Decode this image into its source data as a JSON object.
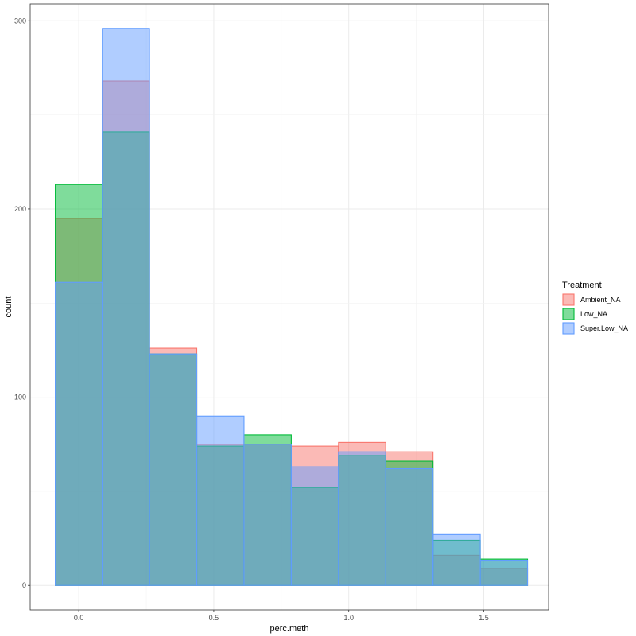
{
  "chart_data": {
    "type": "histogram",
    "xlabel": "perc.meth",
    "ylabel": "count",
    "xlim": [
      -0.18,
      1.74
    ],
    "ylim": [
      -13,
      309
    ],
    "x_ticks": [
      0.0,
      0.5,
      1.0,
      1.5
    ],
    "x_tick_labels": [
      "0.0",
      "0.5",
      "1.0",
      "1.5"
    ],
    "y_ticks": [
      0,
      100,
      200,
      300
    ],
    "y_tick_labels": [
      "0",
      "100",
      "200",
      "300"
    ],
    "bin_edges": [
      -0.087,
      0.087,
      0.262,
      0.437,
      0.612,
      0.787,
      0.962,
      1.137,
      1.312,
      1.487,
      1.662
    ],
    "series": [
      {
        "name": "Ambient_NA",
        "fill": "#F8766D",
        "stroke": "#F8766D",
        "values": [
          195,
          268,
          126,
          75,
          75,
          74,
          76,
          71,
          16,
          9
        ]
      },
      {
        "name": "Low_NA",
        "fill": "#00BA38",
        "stroke": "#00BA38",
        "values": [
          213,
          241,
          123,
          74,
          80,
          52,
          69,
          66,
          24,
          14
        ]
      },
      {
        "name": "Super.Low_NA",
        "fill": "#619CFF",
        "stroke": "#619CFF",
        "values": [
          161,
          296,
          123,
          90,
          75,
          63,
          71,
          62,
          27,
          13
        ]
      }
    ],
    "legend": {
      "title": "Treatment",
      "position": "right"
    },
    "grid": true
  }
}
